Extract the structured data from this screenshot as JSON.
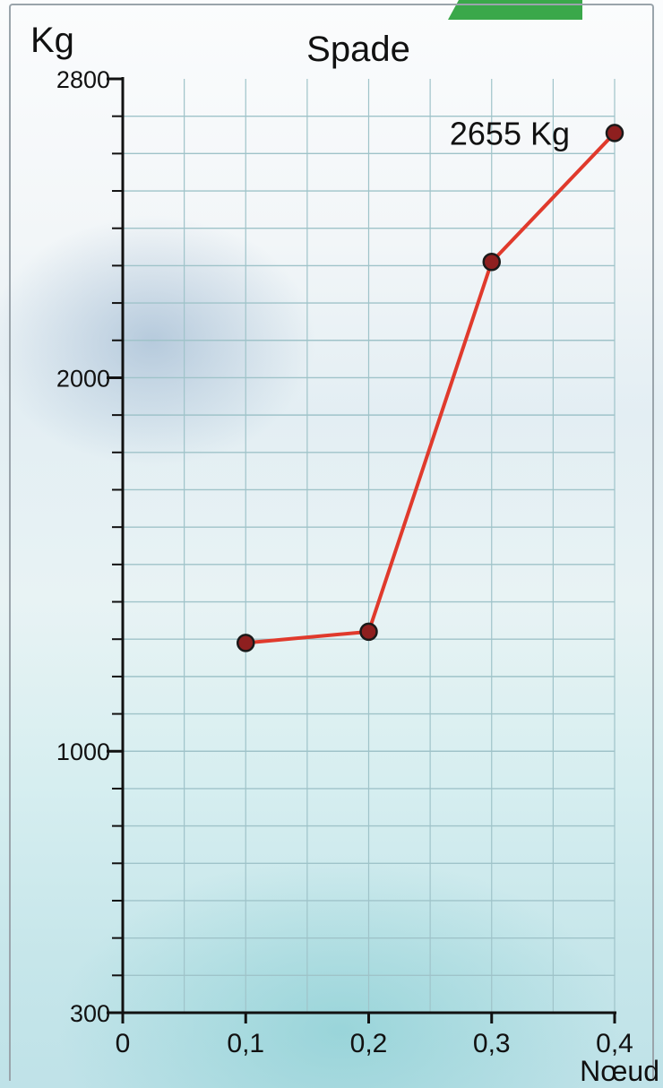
{
  "colors": {
    "line": "#e03a2c",
    "marker": "#8e1f1f",
    "grid": "#9fc3c9",
    "axis": "#111111",
    "tab": "#3aa84a"
  },
  "chart_data": {
    "type": "line",
    "title": "Spade",
    "ylabel": "Kg",
    "xlabel": "Nœud",
    "xlim": [
      0,
      0.4
    ],
    "ylim": [
      300,
      2800
    ],
    "grid": true,
    "x_ticks": [
      {
        "value": 0,
        "label": "0"
      },
      {
        "value": 0.1,
        "label": "0,1"
      },
      {
        "value": 0.2,
        "label": "0,2"
      },
      {
        "value": 0.3,
        "label": "0,3"
      },
      {
        "value": 0.4,
        "label": "0,4"
      }
    ],
    "y_ticks": [
      {
        "value": 300,
        "label": "300"
      },
      {
        "value": 1000,
        "label": "1000"
      },
      {
        "value": 2000,
        "label": "2000"
      },
      {
        "value": 2800,
        "label": "2800"
      }
    ],
    "series": [
      {
        "x": [
          0.1,
          0.2,
          0.3,
          0.4
        ],
        "values": [
          1290,
          1320,
          2310,
          2655
        ]
      }
    ],
    "annotations": [
      {
        "text": "2655 Kg",
        "x": 0.4,
        "y": 2655
      }
    ]
  }
}
